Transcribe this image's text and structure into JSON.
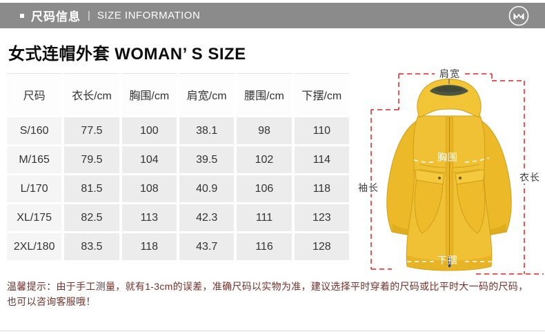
{
  "banner": {
    "title_zh": "尺码信息",
    "separator": "|",
    "title_en": "SIZE INFORMATION",
    "bar_color": "#8b8b8b"
  },
  "page_title": "女式连帽外套 WOMAN’ S SIZE",
  "size_table": {
    "columns": [
      "尺码",
      "衣长/cm",
      "胸围/cm",
      "肩宽/cm",
      "腰围/cm",
      "下摆/cm"
    ],
    "rows": [
      {
        "size": "S/160",
        "values": [
          "77.5",
          "100",
          "38.1",
          "98",
          "110"
        ]
      },
      {
        "size": "M/165",
        "values": [
          "79.5",
          "104",
          "39.5",
          "102",
          "114"
        ]
      },
      {
        "size": "L/170",
        "values": [
          "81.5",
          "108",
          "40.9",
          "106",
          "118"
        ]
      },
      {
        "size": "XL/175",
        "values": [
          "82.5",
          "113",
          "42.3",
          "111",
          "123"
        ]
      },
      {
        "size": "2XL/180",
        "values": [
          "83.5",
          "118",
          "43.7",
          "116",
          "128"
        ]
      }
    ]
  },
  "figure": {
    "labels": {
      "shoulder": "肩宽",
      "chest": "胸围",
      "sleeve": "袖长",
      "length": "衣长",
      "hem": "下摆"
    },
    "colors": {
      "annotation_red": "#e02020",
      "jacket_yellow": "#eebc2d",
      "jacket_shadow": "#d9a51a",
      "hood_lining": "#4c5640"
    }
  },
  "note": {
    "text": "温馨提示：由于手工测量，就有1-3cm的误差，准确尺码以实物为准，建议选择平时穿着的尺码或比平时大一码的尺码，也可以咨询客服哦！",
    "color": "#743029"
  }
}
